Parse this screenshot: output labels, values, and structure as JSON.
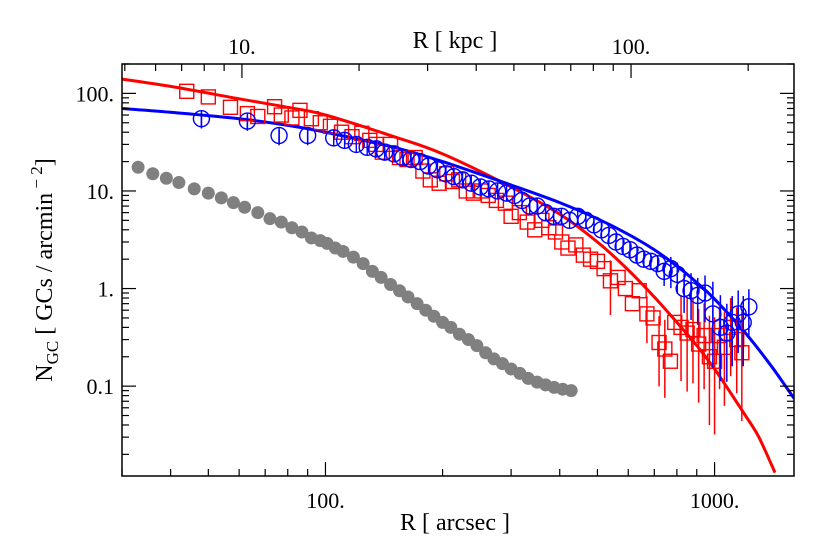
{
  "chart_data": {
    "type": "scatter",
    "x_scale": "log",
    "y_scale": "log",
    "xlim": [
      30,
      1600
    ],
    "ylim": [
      0.012,
      200
    ],
    "xlabel": "R [ arcsec ]",
    "top_xlabel": "R [ kpc ]",
    "ylabel_main": "N",
    "ylabel_sub": "GC",
    "ylabel_rest": " [ GCs /  arcmin",
    "ylabel_sup": " − 2",
    "ylabel_close": "]",
    "x_ticks": [
      {
        "value": 100,
        "label": "100."
      },
      {
        "value": 1000,
        "label": "1000."
      }
    ],
    "top_ticks": [
      {
        "value": 10,
        "label": "10."
      },
      {
        "value": 100,
        "label": "100."
      }
    ],
    "top_axis_arcsec_per_kpc": 6.1,
    "y_ticks": [
      {
        "value": 100,
        "label": "100."
      },
      {
        "value": 10,
        "label": "10."
      },
      {
        "value": 1,
        "label": "1."
      },
      {
        "value": 0.1,
        "label": "0.1"
      }
    ],
    "grid": false,
    "colors": {
      "red": "#ff0000",
      "blue": "#0000ff",
      "gray": "#808080"
    },
    "series": [
      {
        "marker": "square",
        "color": "#ff0000",
        "points": [
          [
            44,
            105,
            0
          ],
          [
            50,
            92,
            0
          ],
          [
            57,
            72,
            0
          ],
          [
            63,
            62,
            0
          ],
          [
            67,
            58,
            0
          ],
          [
            74,
            73,
            0
          ],
          [
            77,
            60,
            0
          ],
          [
            82,
            56,
            0
          ],
          [
            86,
            67,
            0
          ],
          [
            92,
            55,
            0
          ],
          [
            97,
            50,
            0
          ],
          [
            103,
            46,
            0
          ],
          [
            110,
            40,
            0
          ],
          [
            117,
            36,
            0
          ],
          [
            124,
            39,
            0
          ],
          [
            130,
            33,
            0
          ],
          [
            135,
            30,
            0
          ],
          [
            140,
            25,
            0
          ],
          [
            147,
            30,
            0
          ],
          [
            155,
            22,
            0
          ],
          [
            162,
            21,
            0
          ],
          [
            170,
            22,
            0
          ],
          [
            178,
            16,
            0
          ],
          [
            186,
            13,
            0
          ],
          [
            196,
            12,
            0
          ],
          [
            205,
            15,
            0
          ],
          [
            212,
            12.5,
            0
          ],
          [
            220,
            13,
            0
          ],
          [
            230,
            10,
            0
          ],
          [
            240,
            9.5,
            0
          ],
          [
            252,
            10,
            0
          ],
          [
            262,
            9,
            0
          ],
          [
            275,
            8,
            0
          ],
          [
            290,
            7.5,
            0
          ],
          [
            300,
            5.5,
            0
          ],
          [
            315,
            6,
            0
          ],
          [
            330,
            4.8,
            0
          ],
          [
            345,
            4,
            0
          ],
          [
            360,
            5,
            0
          ],
          [
            375,
            4.2,
            0
          ],
          [
            390,
            3.8,
            0
          ],
          [
            405,
            3,
            0
          ],
          [
            420,
            2.6,
            0
          ],
          [
            440,
            2.8,
            0
          ],
          [
            460,
            2.2,
            0
          ],
          [
            480,
            2.0,
            0
          ],
          [
            500,
            1.9,
            0
          ],
          [
            520,
            1.6,
            0
          ],
          [
            540,
            1.2,
            0.35
          ],
          [
            565,
            1.3,
            0
          ],
          [
            590,
            1.0,
            0
          ],
          [
            615,
            0.7,
            0
          ],
          [
            640,
            0.95,
            0
          ],
          [
            670,
            0.55,
            0.3
          ],
          [
            695,
            0.5,
            0
          ],
          [
            720,
            0.28,
            0.45
          ],
          [
            745,
            0.24,
            0.5
          ],
          [
            770,
            0.18,
            0
          ],
          [
            790,
            0.45,
            0
          ],
          [
            820,
            0.4,
            0.55
          ],
          [
            850,
            0.35,
            0.6
          ],
          [
            880,
            0.38,
            0.55
          ],
          [
            910,
            0.27,
            0.6
          ],
          [
            940,
            0.33,
            0.55
          ],
          [
            970,
            0.2,
            0.7
          ],
          [
            1000,
            0.18,
            0.75
          ],
          [
            1030,
            0.33,
            0.55
          ],
          [
            1060,
            0.25,
            0.6
          ],
          [
            1100,
            0.4,
            0.5
          ],
          [
            1140,
            0.3,
            0.55
          ],
          [
            1175,
            0.22,
            0.7
          ]
        ]
      },
      {
        "marker": "circle",
        "color": "#0000ff",
        "points": [
          [
            48,
            55,
            0.1
          ],
          [
            63,
            52,
            0.1
          ],
          [
            76,
            37,
            0.1
          ],
          [
            90,
            37,
            0.1
          ],
          [
            105,
            35,
            0
          ],
          [
            112,
            33,
            0
          ],
          [
            120,
            30,
            0
          ],
          [
            128,
            28,
            0
          ],
          [
            135,
            27,
            0
          ],
          [
            142,
            25,
            0
          ],
          [
            150,
            24,
            0
          ],
          [
            158,
            22,
            0
          ],
          [
            166,
            21,
            0
          ],
          [
            175,
            20,
            0
          ],
          [
            184,
            18,
            0
          ],
          [
            194,
            16.5,
            0
          ],
          [
            204,
            15,
            0
          ],
          [
            214,
            14,
            0
          ],
          [
            225,
            13,
            0
          ],
          [
            237,
            12,
            0
          ],
          [
            250,
            11,
            0
          ],
          [
            263,
            10.5,
            0
          ],
          [
            277,
            10,
            0
          ],
          [
            292,
            9.5,
            0
          ],
          [
            306,
            9,
            0
          ],
          [
            320,
            8,
            0
          ],
          [
            335,
            7,
            0
          ],
          [
            350,
            7,
            0
          ],
          [
            368,
            6,
            0
          ],
          [
            386,
            5.5,
            0
          ],
          [
            404,
            5.5,
            0
          ],
          [
            424,
            5,
            0
          ],
          [
            445,
            5.5,
            0
          ],
          [
            467,
            5,
            0
          ],
          [
            490,
            4.5,
            0
          ],
          [
            512,
            4,
            0
          ],
          [
            535,
            3.5,
            0
          ],
          [
            558,
            3,
            0
          ],
          [
            582,
            2.7,
            0
          ],
          [
            606,
            2.5,
            0
          ],
          [
            632,
            2.2,
            0
          ],
          [
            658,
            2.0,
            0
          ],
          [
            686,
            1.9,
            0
          ],
          [
            714,
            1.8,
            0
          ],
          [
            742,
            1.5,
            0.15
          ],
          [
            772,
            1.6,
            0.2
          ],
          [
            802,
            1.4,
            0.2
          ],
          [
            835,
            1.0,
            0.25
          ],
          [
            870,
            0.95,
            0.3
          ],
          [
            905,
            0.85,
            0.3
          ],
          [
            945,
            0.9,
            0.3
          ],
          [
            990,
            0.55,
            0.55
          ],
          [
            1035,
            0.4,
            0.55
          ],
          [
            1075,
            0.35,
            0.5
          ],
          [
            1110,
            0.45,
            0.45
          ],
          [
            1150,
            0.55,
            0.4
          ],
          [
            1185,
            0.45,
            0.45
          ],
          [
            1225,
            0.65,
            0.3
          ]
        ]
      },
      {
        "marker": "dot",
        "color": "#808080",
        "points": [
          [
            33,
            17.5,
            0
          ],
          [
            36,
            15,
            0
          ],
          [
            39,
            13.5,
            0
          ],
          [
            42,
            12.2,
            0
          ],
          [
            46,
            10.5,
            0
          ],
          [
            50,
            9.5,
            0
          ],
          [
            54,
            8.5,
            0
          ],
          [
            58,
            7.6,
            0
          ],
          [
            62,
            6.8,
            0
          ],
          [
            67,
            6.0,
            0
          ],
          [
            72,
            5.2,
            0
          ],
          [
            77,
            4.8,
            0
          ],
          [
            82,
            4.2,
            0
          ],
          [
            87,
            3.8,
            0
          ],
          [
            92,
            3.3,
            0
          ],
          [
            97,
            3.1,
            0
          ],
          [
            101,
            2.9,
            0
          ],
          [
            106,
            2.6,
            0
          ],
          [
            111,
            2.4,
            0
          ],
          [
            118,
            2.1,
            0
          ],
          [
            125,
            1.8,
            0
          ],
          [
            132,
            1.5,
            0
          ],
          [
            139,
            1.3,
            0
          ],
          [
            147,
            1.1,
            0
          ],
          [
            155,
            0.95,
            0
          ],
          [
            163,
            0.82,
            0
          ],
          [
            172,
            0.7,
            0
          ],
          [
            181,
            0.6,
            0
          ],
          [
            190,
            0.52,
            0
          ],
          [
            200,
            0.45,
            0
          ],
          [
            210,
            0.4,
            0
          ],
          [
            221,
            0.34,
            0
          ],
          [
            233,
            0.3,
            0
          ],
          [
            245,
            0.26,
            0
          ],
          [
            258,
            0.22,
            0
          ],
          [
            271,
            0.19,
            0
          ],
          [
            285,
            0.17,
            0
          ],
          [
            300,
            0.15,
            0
          ],
          [
            316,
            0.135,
            0
          ],
          [
            332,
            0.12,
            0
          ],
          [
            350,
            0.11,
            0
          ],
          [
            368,
            0.103,
            0
          ],
          [
            387,
            0.097,
            0
          ],
          [
            407,
            0.093,
            0
          ],
          [
            428,
            0.09,
            0
          ]
        ]
      }
    ],
    "curves": [
      {
        "color": "#ff0000",
        "points": [
          [
            30,
            140
          ],
          [
            40,
            118
          ],
          [
            60,
            88
          ],
          [
            80,
            72
          ],
          [
            100,
            60
          ],
          [
            150,
            36
          ],
          [
            200,
            24
          ],
          [
            300,
            11
          ],
          [
            400,
            5.8
          ],
          [
            500,
            3.0
          ],
          [
            600,
            1.55
          ],
          [
            700,
            0.82
          ],
          [
            800,
            0.45
          ],
          [
            900,
            0.26
          ],
          [
            1000,
            0.15
          ],
          [
            1100,
            0.085
          ],
          [
            1200,
            0.05
          ],
          [
            1300,
            0.03
          ],
          [
            1430,
            0.013
          ]
        ]
      },
      {
        "color": "#0000ff",
        "points": [
          [
            30,
            70
          ],
          [
            40,
            64
          ],
          [
            60,
            55
          ],
          [
            80,
            47
          ],
          [
            100,
            40
          ],
          [
            150,
            28
          ],
          [
            200,
            20
          ],
          [
            300,
            11.5
          ],
          [
            400,
            7.6
          ],
          [
            500,
            5.2
          ],
          [
            600,
            3.6
          ],
          [
            700,
            2.5
          ],
          [
            800,
            1.7
          ],
          [
            900,
            1.15
          ],
          [
            1000,
            0.78
          ],
          [
            1200,
            0.35
          ],
          [
            1400,
            0.16
          ],
          [
            1600,
            0.075
          ]
        ]
      }
    ]
  }
}
